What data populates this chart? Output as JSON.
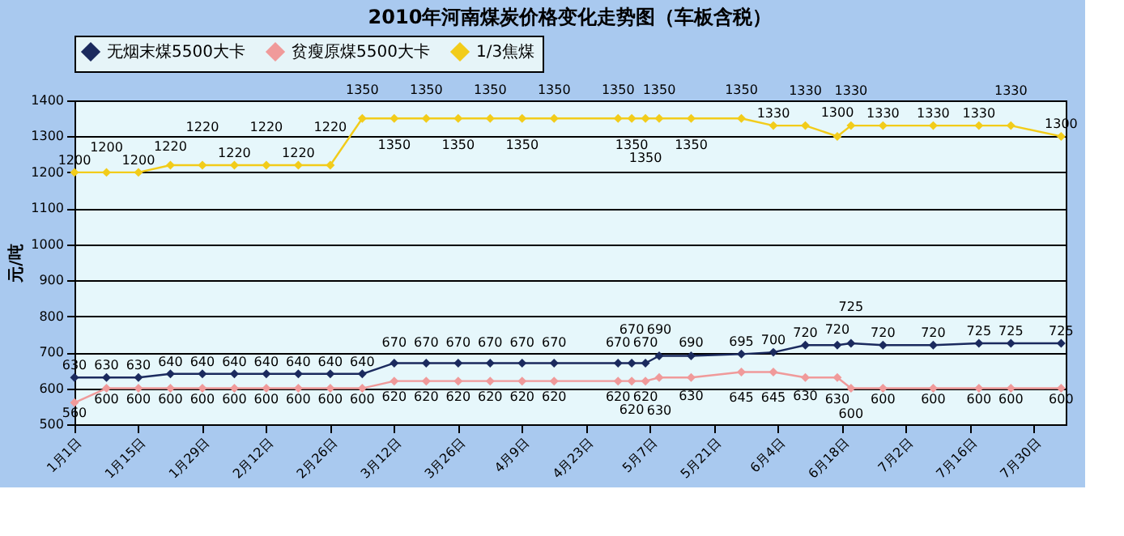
{
  "chart_data": {
    "type": "line",
    "title": "2010年河南煤炭价格变化走势图（车板含税）",
    "ylabel": "元/吨",
    "x": [
      "2010-01-01",
      "2010-01-08",
      "2010-01-15",
      "2010-01-22",
      "2010-01-29",
      "2010-02-05",
      "2010-02-12",
      "2010-02-19",
      "2010-02-26",
      "2010-03-05",
      "2010-03-12",
      "2010-03-19",
      "2010-03-26",
      "2010-04-02",
      "2010-04-09",
      "2010-04-16",
      "2010-04-30",
      "2010-05-03",
      "2010-05-06",
      "2010-05-09",
      "2010-05-16",
      "2010-05-27",
      "2010-06-03",
      "2010-06-10",
      "2010-06-17",
      "2010-06-20",
      "2010-06-27",
      "2010-07-08",
      "2010-07-18",
      "2010-07-25",
      "2010-08-05"
    ],
    "series": [
      {
        "name": "无烟末煤5500大卡",
        "color": "#1b2a5e",
        "values": [
          630,
          630,
          630,
          640,
          640,
          640,
          640,
          640,
          640,
          640,
          670,
          670,
          670,
          670,
          670,
          670,
          670,
          670,
          670,
          690,
          690,
          695,
          700,
          720,
          720,
          725,
          720,
          720,
          725,
          725,
          725
        ]
      },
      {
        "name": "贫瘦原煤5500大卡",
        "color": "#f09a9a",
        "values": [
          560,
          600,
          600,
          600,
          600,
          600,
          600,
          600,
          600,
          600,
          620,
          620,
          620,
          620,
          620,
          620,
          620,
          620,
          620,
          630,
          630,
          645,
          645,
          630,
          630,
          600,
          600,
          600,
          600,
          600,
          600
        ]
      },
      {
        "name": "1/3焦煤",
        "color": "#f2cc1a",
        "values": [
          1200,
          1200,
          1200,
          1220,
          1220,
          1220,
          1220,
          1220,
          1220,
          1350,
          1350,
          1350,
          1350,
          1350,
          1350,
          1350,
          1350,
          1350,
          1350,
          1350,
          1350,
          1350,
          1330,
          1330,
          1300,
          1330,
          1330,
          1330,
          1330,
          1330,
          1300
        ]
      }
    ],
    "xlim": [
      "2010-01-01",
      "2010-08-06"
    ],
    "xticks": [
      {
        "value": "2010-01-01",
        "label": "1月1日"
      },
      {
        "value": "2010-01-15",
        "label": "1月15日"
      },
      {
        "value": "2010-01-29",
        "label": "1月29日"
      },
      {
        "value": "2010-02-12",
        "label": "2月12日"
      },
      {
        "value": "2010-02-26",
        "label": "2月26日"
      },
      {
        "value": "2010-03-12",
        "label": "3月12日"
      },
      {
        "value": "2010-03-26",
        "label": "3月26日"
      },
      {
        "value": "2010-04-09",
        "label": "4月9日"
      },
      {
        "value": "2010-04-23",
        "label": "4月23日"
      },
      {
        "value": "2010-05-07",
        "label": "5月7日"
      },
      {
        "value": "2010-05-21",
        "label": "5月21日"
      },
      {
        "value": "2010-06-04",
        "label": "6月4日"
      },
      {
        "value": "2010-06-18",
        "label": "6月18日"
      },
      {
        "value": "2010-07-02",
        "label": "7月2日"
      },
      {
        "value": "2010-07-16",
        "label": "7月16日"
      },
      {
        "value": "2010-07-30",
        "label": "7月30日"
      }
    ],
    "ylim": [
      500,
      1400
    ],
    "yticks": [
      500,
      600,
      700,
      800,
      900,
      1000,
      1100,
      1200,
      1300,
      1400
    ],
    "grid": "y",
    "legend": "top",
    "marker": "diamond",
    "line_style": "solid",
    "data_labels": true
  }
}
